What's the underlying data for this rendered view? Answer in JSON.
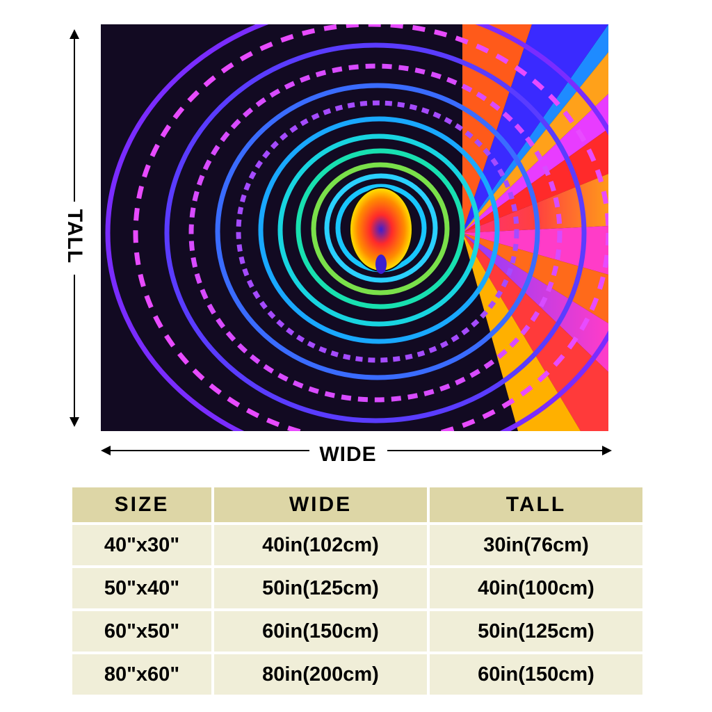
{
  "dimension_labels": {
    "tall": "TALL",
    "wide": "WIDE"
  },
  "product_image": {
    "description_icon": "psychedelic-spiral-blanket",
    "colors": [
      "#7a3cff",
      "#e84bff",
      "#18c6ff",
      "#ff3a3a",
      "#ffb000",
      "#1a1a1a"
    ]
  },
  "size_table": {
    "headers": [
      "SIZE",
      "WIDE",
      "TALL"
    ],
    "rows": [
      [
        "40\"x30\"",
        "40in(102cm)",
        "30in(76cm)"
      ],
      [
        "50\"x40\"",
        "50in(125cm)",
        "40in(100cm)"
      ],
      [
        "60\"x50\"",
        "60in(150cm)",
        "50in(125cm)"
      ],
      [
        "80\"x60\"",
        "80in(200cm)",
        "60in(150cm)"
      ]
    ],
    "header_color": "#ddd6a6",
    "cell_color": "#f0eed8"
  }
}
